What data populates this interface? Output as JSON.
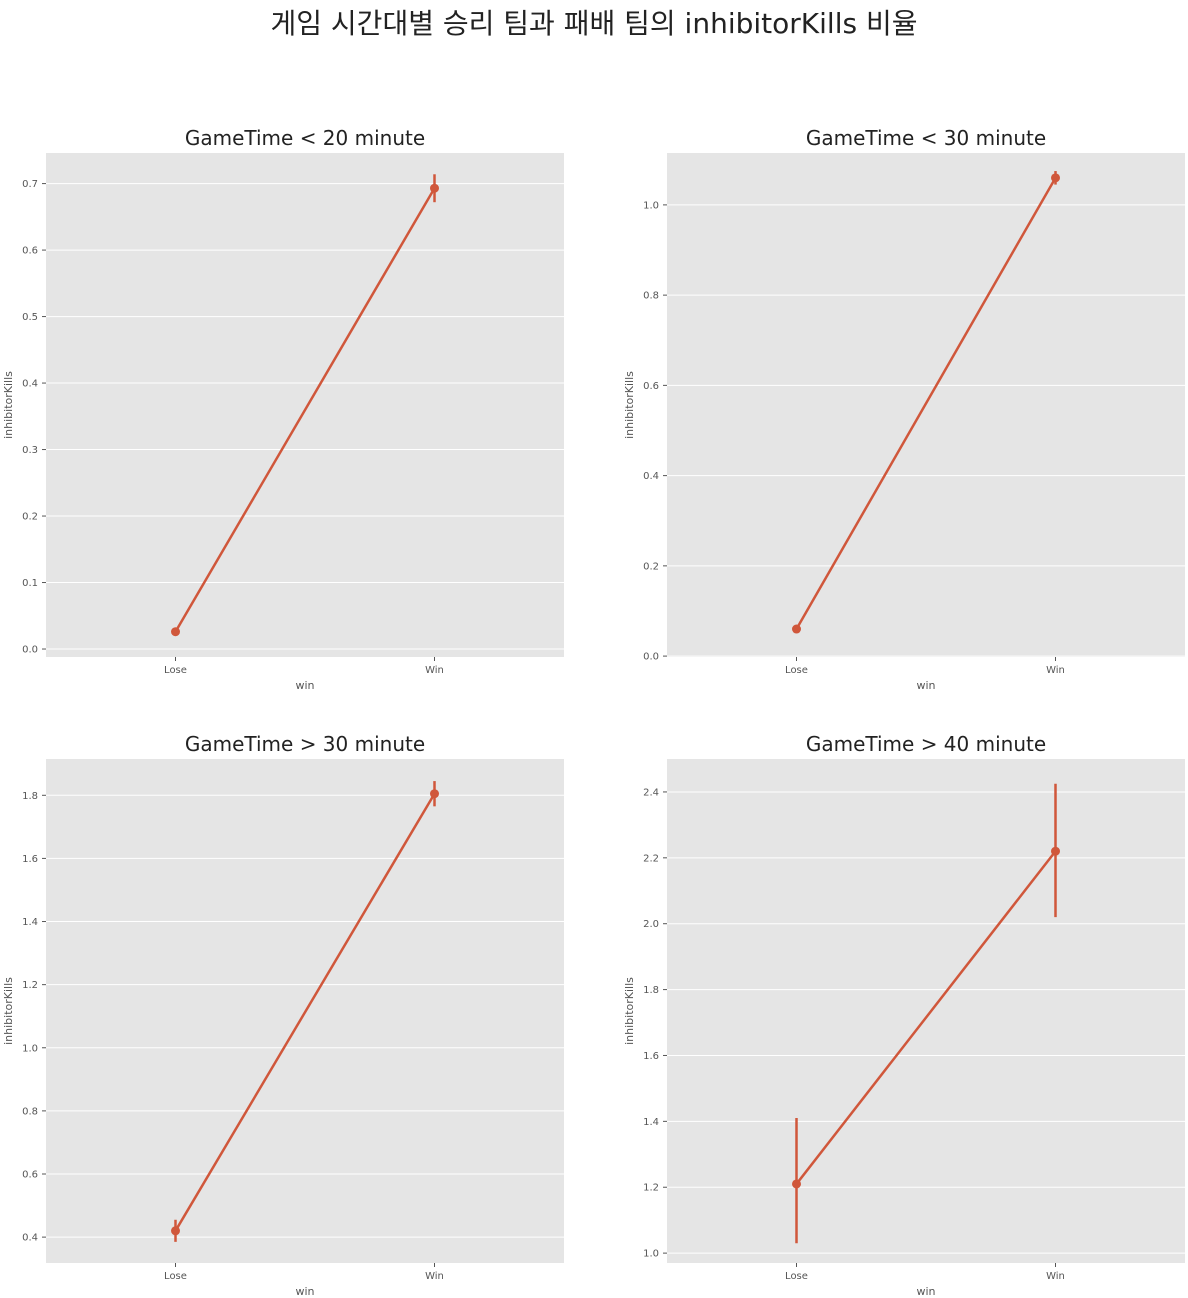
{
  "figure": {
    "title": "게임 시간대별 승리 팀과 패배 팀의 inhibitorKills 비율",
    "line_color": "#d0573b",
    "panel_background": "#e5e5e5",
    "grid_color": "#ffffff"
  },
  "chart_data": [
    {
      "type": "line",
      "title": "GameTime < 20 minute",
      "xlabel": "win",
      "ylabel": "inhibitorKills",
      "categories": [
        "Lose",
        "Win"
      ],
      "series": [
        {
          "values": [
            0.026,
            0.693
          ],
          "ci_low": [
            0.022,
            0.672
          ],
          "ci_high": [
            0.03,
            0.714
          ]
        }
      ],
      "ylim": [
        -0.012,
        0.746
      ],
      "yticks": [
        0.0,
        0.1,
        0.2,
        0.3,
        0.4,
        0.5,
        0.6,
        0.7
      ],
      "ytick_labels": [
        "0.0",
        "0.1",
        "0.2",
        "0.3",
        "0.4",
        "0.5",
        "0.6",
        "0.7"
      ],
      "grid": true
    },
    {
      "type": "line",
      "title": "GameTime < 30 minute",
      "xlabel": "win",
      "ylabel": "inhibitorKills",
      "categories": [
        "Lose",
        "Win"
      ],
      "series": [
        {
          "values": [
            0.06,
            1.06
          ],
          "ci_low": [
            0.055,
            1.045
          ],
          "ci_high": [
            0.065,
            1.075
          ]
        }
      ],
      "ylim": [
        -0.002,
        1.115
      ],
      "yticks": [
        0.0,
        0.2,
        0.4,
        0.6,
        0.8,
        1.0
      ],
      "ytick_labels": [
        "0.0",
        "0.2",
        "0.4",
        "0.6",
        "0.8",
        "1.0"
      ],
      "grid": true
    },
    {
      "type": "line",
      "title": "GameTime > 30 minute",
      "xlabel": "win",
      "ylabel": "inhibitorKills",
      "categories": [
        "Lose",
        "Win"
      ],
      "series": [
        {
          "values": [
            0.42,
            1.805
          ],
          "ci_low": [
            0.385,
            1.765
          ],
          "ci_high": [
            0.455,
            1.845
          ]
        }
      ],
      "ylim": [
        0.318,
        1.915
      ],
      "yticks": [
        0.4,
        0.6,
        0.8,
        1.0,
        1.2,
        1.4,
        1.6,
        1.8
      ],
      "ytick_labels": [
        "0.4",
        "0.6",
        "0.8",
        "1.0",
        "1.2",
        "1.4",
        "1.6",
        "1.8"
      ],
      "grid": true
    },
    {
      "type": "line",
      "title": "GameTime > 40 minute",
      "xlabel": "win",
      "ylabel": "inhibitorKills",
      "categories": [
        "Lose",
        "Win"
      ],
      "series": [
        {
          "values": [
            1.21,
            2.22
          ],
          "ci_low": [
            1.03,
            2.02
          ],
          "ci_high": [
            1.41,
            2.425
          ]
        }
      ],
      "ylim": [
        0.97,
        2.5
      ],
      "yticks": [
        1.0,
        1.2,
        1.4,
        1.6,
        1.8,
        2.0,
        2.2,
        2.4
      ],
      "ytick_labels": [
        "1.0",
        "1.2",
        "1.4",
        "1.6",
        "1.8",
        "2.0",
        "2.2",
        "2.4"
      ],
      "grid": true
    }
  ]
}
